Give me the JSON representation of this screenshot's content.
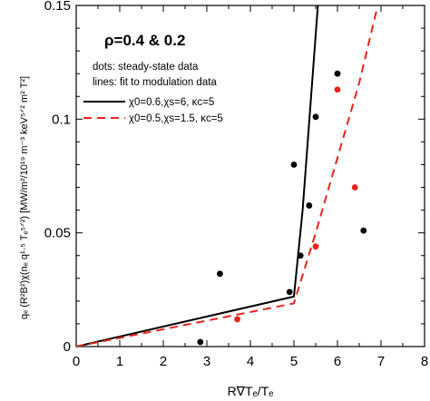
{
  "chart_data": {
    "type": "scatter",
    "xlim": [
      0,
      8
    ],
    "ylim": [
      0,
      0.15
    ],
    "x_ticks": [
      "0",
      "1",
      "2",
      "3",
      "4",
      "5",
      "6",
      "7",
      "8"
    ],
    "y_ticks": [
      "0",
      "0.05",
      "0.1",
      "0.15"
    ],
    "y_tick_values": [
      0,
      0.05,
      0.1,
      0.15
    ],
    "xlabel": "R∇Tₑ/Tₑ",
    "ylabel": "qₑ (R²B²)χ(nₑ q¹·⁵ Tₑ⁵ᐟ²) [MW/m²/10¹⁹ m⁻³ keV⁵ᐟ² m² T²]",
    "annotations": {
      "rho": "ρ=0.4 & 0.2",
      "dots_note": "dots: steady-state data",
      "lines_note": "lines: fit to modulation data"
    },
    "series": [
      {
        "name": "χ0=0.6,χs=6, κc=5",
        "kind": "line",
        "color": "#000000",
        "dash": "solid",
        "x": [
          0,
          5,
          5.2,
          5.55
        ],
        "y": [
          0,
          0.022,
          0.06,
          0.15
        ]
      },
      {
        "name": "χ0=0.5,χs=1.5, κc=5",
        "kind": "line",
        "color": "#e8231c",
        "dash": "dashed",
        "x": [
          0,
          5,
          5.5,
          6,
          6.5,
          6.9
        ],
        "y": [
          0,
          0.019,
          0.05,
          0.083,
          0.116,
          0.148
        ]
      },
      {
        "name": "steady-state data (black)",
        "kind": "points",
        "color": "#000000",
        "x": [
          2.85,
          3.3,
          4.9,
          5.0,
          5.15,
          5.35,
          5.5,
          6.0,
          6.6
        ],
        "y": [
          0.002,
          0.032,
          0.024,
          0.08,
          0.04,
          0.062,
          0.101,
          0.12,
          0.051
        ]
      },
      {
        "name": "steady-state data (red)",
        "kind": "points",
        "color": "#e8231c",
        "x": [
          3.7,
          5.5,
          6.0,
          6.4
        ],
        "y": [
          0.012,
          0.044,
          0.113,
          0.07
        ]
      }
    ]
  }
}
